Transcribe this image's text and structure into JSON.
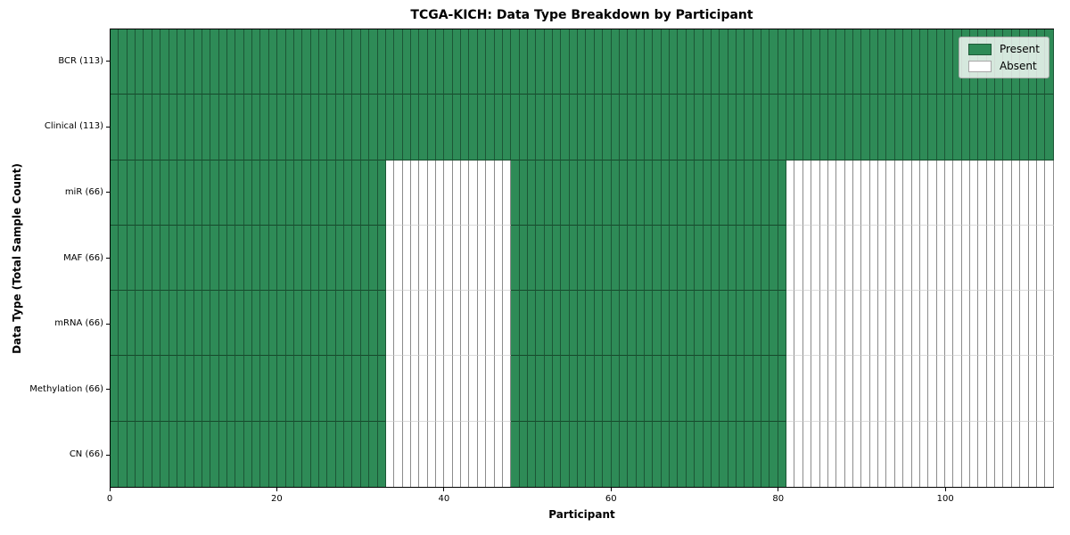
{
  "chart_data": {
    "type": "heatmap",
    "title": "TCGA-KICH: Data Type Breakdown by Participant",
    "xlabel": "Participant",
    "ylabel": "Data Type (Total Sample Count)",
    "x_range": [
      0,
      113
    ],
    "x_ticks": [
      0,
      20,
      40,
      60,
      80,
      100
    ],
    "n_participants": 113,
    "legend_position": "upper right",
    "legend": [
      {
        "label": "Present",
        "color": "#2e8b57"
      },
      {
        "label": "Absent",
        "color": "#ffffff"
      }
    ],
    "rows": [
      {
        "label": "BCR (113)",
        "present_count": 113,
        "present_segments": [
          [
            0,
            113
          ]
        ]
      },
      {
        "label": "Clinical (113)",
        "present_count": 113,
        "present_segments": [
          [
            0,
            113
          ]
        ]
      },
      {
        "label": "miR (66)",
        "present_count": 66,
        "present_segments": [
          [
            0,
            33
          ],
          [
            48,
            81
          ]
        ]
      },
      {
        "label": "MAF (66)",
        "present_count": 66,
        "present_segments": [
          [
            0,
            33
          ],
          [
            48,
            81
          ]
        ]
      },
      {
        "label": "mRNA (66)",
        "present_count": 66,
        "present_segments": [
          [
            0,
            33
          ],
          [
            48,
            81
          ]
        ]
      },
      {
        "label": "Methylation (66)",
        "present_count": 66,
        "present_segments": [
          [
            0,
            33
          ],
          [
            48,
            81
          ]
        ]
      },
      {
        "label": "CN (66)",
        "present_count": 66,
        "present_segments": [
          [
            0,
            33
          ],
          [
            48,
            81
          ]
        ]
      }
    ]
  }
}
